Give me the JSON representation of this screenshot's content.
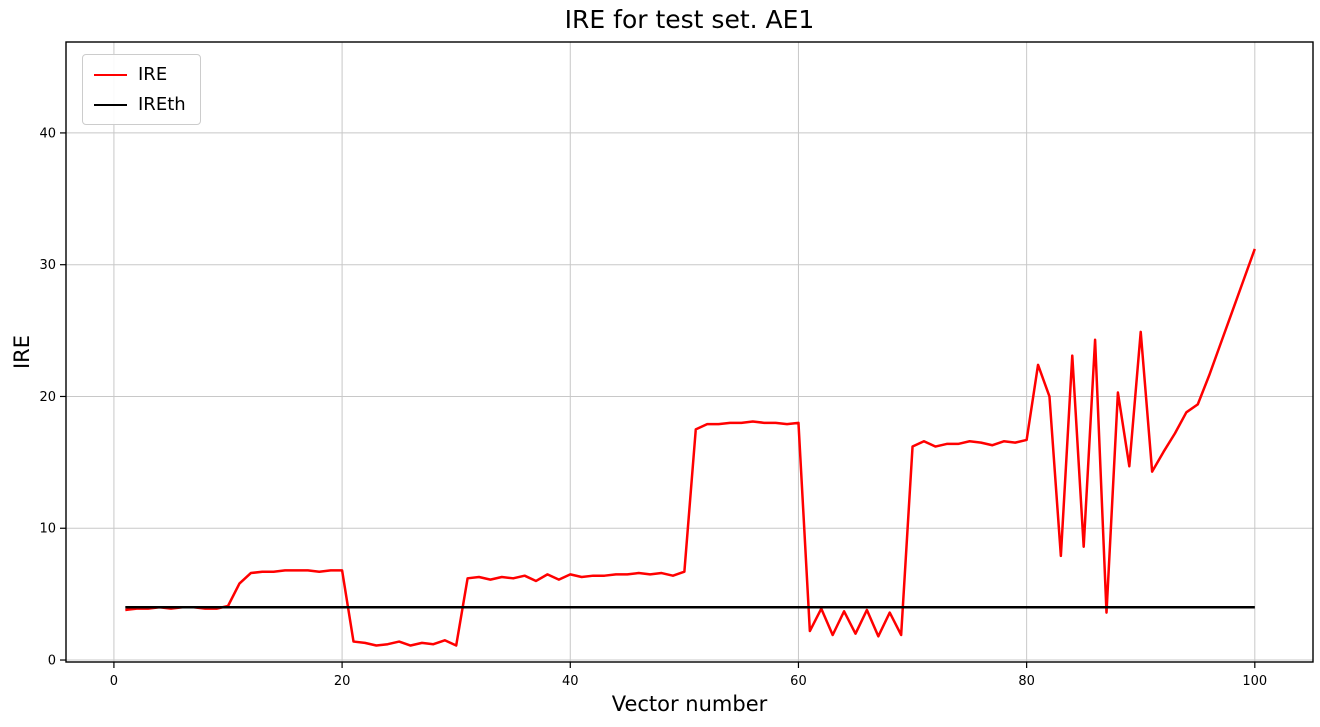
{
  "chart_data": {
    "type": "line",
    "title": "IRE for test set. AE1",
    "xlabel": "Vector number",
    "ylabel": "IRE",
    "xlim": [
      -4.2,
      105.1
    ],
    "ylim": [
      -0.15,
      46.9
    ],
    "xticks": [
      0,
      20,
      40,
      60,
      80,
      100
    ],
    "yticks": [
      0,
      10,
      20,
      30,
      40
    ],
    "grid": true,
    "grid_color": "#c8c8c8",
    "legend": {
      "position": "upper-left",
      "entries": [
        {
          "label": "IRE",
          "color": "#ff0000"
        },
        {
          "label": "IREth",
          "color": "#000000"
        }
      ]
    },
    "series": [
      {
        "name": "IRE",
        "color": "#ff0000",
        "x": [
          1,
          2,
          3,
          4,
          5,
          6,
          7,
          8,
          9,
          10,
          11,
          12,
          13,
          14,
          15,
          16,
          17,
          18,
          19,
          20,
          21,
          22,
          23,
          24,
          25,
          26,
          27,
          28,
          29,
          30,
          31,
          32,
          33,
          34,
          35,
          36,
          37,
          38,
          39,
          40,
          41,
          42,
          43,
          44,
          45,
          46,
          47,
          48,
          49,
          50,
          51,
          52,
          53,
          54,
          55,
          56,
          57,
          58,
          59,
          60,
          61,
          62,
          63,
          64,
          65,
          66,
          67,
          68,
          69,
          70,
          71,
          72,
          73,
          74,
          75,
          76,
          77,
          78,
          79,
          80,
          81,
          82,
          83,
          84,
          85,
          86,
          87,
          88,
          89,
          90,
          91,
          92,
          93,
          94,
          95,
          96,
          97,
          98,
          99,
          100
        ],
        "values": [
          3.8,
          3.9,
          3.9,
          4.0,
          3.9,
          4.0,
          4.0,
          3.9,
          3.9,
          4.1,
          5.8,
          6.6,
          6.7,
          6.7,
          6.8,
          6.8,
          6.8,
          6.7,
          6.8,
          6.8,
          1.4,
          1.3,
          1.1,
          1.2,
          1.4,
          1.1,
          1.3,
          1.2,
          1.5,
          1.1,
          6.2,
          6.3,
          6.1,
          6.3,
          6.2,
          6.4,
          6.0,
          6.5,
          6.1,
          6.5,
          6.3,
          6.4,
          6.4,
          6.5,
          6.5,
          6.6,
          6.5,
          6.6,
          6.4,
          6.7,
          17.5,
          17.9,
          17.9,
          18.0,
          18.0,
          18.1,
          18.0,
          18.0,
          17.9,
          18.0,
          2.2,
          3.9,
          1.9,
          3.7,
          2.0,
          3.8,
          1.8,
          3.6,
          1.9,
          16.2,
          16.6,
          16.2,
          16.4,
          16.4,
          16.6,
          16.5,
          16.3,
          16.6,
          16.5,
          16.7,
          22.4,
          20.0,
          7.9,
          23.1,
          8.6,
          24.3,
          3.6,
          20.3,
          14.7,
          24.9,
          14.3,
          15.8,
          17.2,
          18.8,
          19.4,
          21.6,
          24.0,
          26.4,
          28.8,
          31.2
        ]
      },
      {
        "name": "IREth",
        "color": "#000000",
        "x": [
          1,
          100
        ],
        "values": [
          4.0,
          4.0
        ]
      }
    ]
  }
}
